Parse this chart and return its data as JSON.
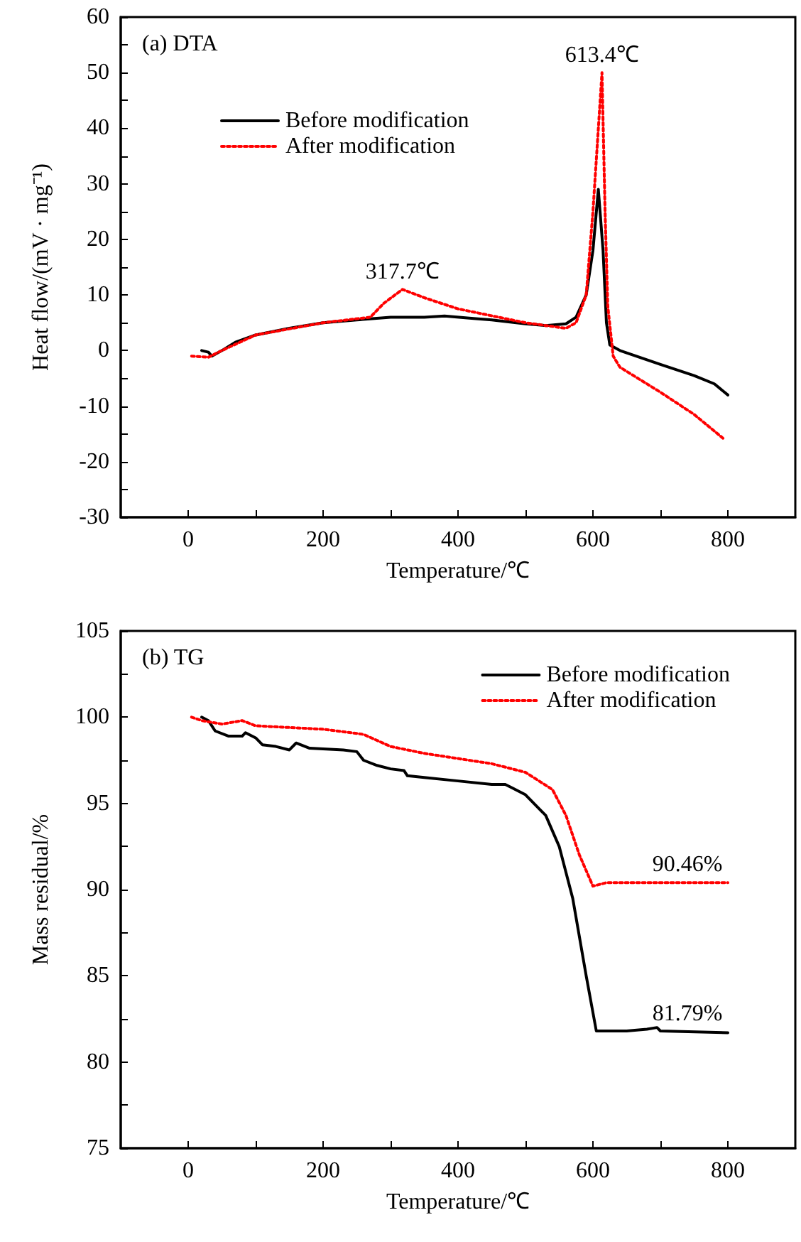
{
  "chart_data": [
    {
      "type": "line",
      "title": "(a) DTA",
      "xlabel": "Temperature/℃",
      "ylabel": "Heat flow/(mV · mg⁻¹)",
      "legend": "top left",
      "marker": "none",
      "grid": false,
      "xlim": [
        -100,
        900
      ],
      "xticks": [
        0,
        {
          "value": 100,
          "label": null
        },
        200,
        {
          "value": 300,
          "label": null
        },
        400,
        {
          "value": 500,
          "label": null
        },
        600,
        {
          "value": 700,
          "label": null
        },
        800
      ],
      "ylim": [
        -30,
        60
      ],
      "yticks": [
        -30,
        {
          "value": -25,
          "label": null
        },
        -20,
        {
          "value": -15,
          "label": null
        },
        -10,
        {
          "value": -5,
          "label": null
        },
        0,
        {
          "value": 5,
          "label": null
        },
        10,
        {
          "value": 15,
          "label": null
        },
        20,
        {
          "value": 25,
          "label": null
        },
        30,
        {
          "value": 35,
          "label": null
        },
        40,
        {
          "value": 45,
          "label": null
        },
        50,
        {
          "value": 55,
          "label": null
        },
        60
      ],
      "annotations": [
        {
          "text": "317.7℃",
          "x": 317.7,
          "y": 11
        },
        {
          "text": "613.4℃",
          "x": 613.4,
          "y": 50
        }
      ],
      "series": [
        {
          "name": "Before modification",
          "color": "#000000",
          "line_style": "solid",
          "x": [
            20,
            30,
            35,
            50,
            70,
            100,
            150,
            200,
            250,
            300,
            350,
            380,
            420,
            450,
            500,
            530,
            560,
            575,
            590,
            600,
            608,
            615,
            620,
            625,
            640,
            700,
            750,
            780,
            800
          ],
          "values": [
            0,
            -0.3,
            -1,
            0,
            1.5,
            2.8,
            4,
            5,
            5.5,
            6,
            6,
            6.2,
            5.8,
            5.5,
            4.8,
            4.5,
            4.8,
            6,
            10,
            18,
            29,
            18,
            5,
            1,
            0,
            -2.5,
            -4.5,
            -6,
            -8
          ]
        },
        {
          "name": "After modification",
          "color": "#ff0000",
          "line_style": "dotted",
          "x": [
            5,
            30,
            50,
            100,
            200,
            270,
            290,
            317.7,
            350,
            400,
            500,
            560,
            575,
            590,
            600,
            613.4,
            618,
            622,
            630,
            640,
            700,
            750,
            795
          ],
          "values": [
            -1,
            -1.2,
            0,
            2.8,
            5,
            6,
            8.5,
            11,
            9.5,
            7.5,
            5,
            4,
            5,
            10,
            25,
            50,
            25,
            8,
            -1,
            -3,
            -7.5,
            -11.5,
            -16
          ]
        }
      ]
    },
    {
      "type": "line",
      "title": "(b) TG",
      "xlabel": "Temperature/℃",
      "ylabel": "Mass residual/%",
      "legend": "top right",
      "marker": "none",
      "grid": false,
      "xlim": [
        -100,
        900
      ],
      "xticks": [
        0,
        {
          "value": 100,
          "label": null
        },
        200,
        {
          "value": 300,
          "label": null
        },
        400,
        {
          "value": 500,
          "label": null
        },
        600,
        {
          "value": 700,
          "label": null
        },
        800
      ],
      "ylim": [
        75,
        105
      ],
      "yticks": [
        75,
        {
          "value": 77.5,
          "label": null
        },
        80,
        {
          "value": 82.5,
          "label": null
        },
        85,
        {
          "value": 87.5,
          "label": null
        },
        90,
        {
          "value": 92.5,
          "label": null
        },
        95,
        {
          "value": 97.5,
          "label": null
        },
        100,
        {
          "value": 102.5,
          "label": null
        },
        105
      ],
      "annotations": [
        {
          "text": "90.46%",
          "x": 740,
          "y": 90.46
        },
        {
          "text": "81.79%",
          "x": 740,
          "y": 81.79
        }
      ],
      "series": [
        {
          "name": "Before modification",
          "color": "#000000",
          "line_style": "solid",
          "x": [
            20,
            30,
            40,
            60,
            80,
            85,
            100,
            110,
            130,
            150,
            160,
            180,
            230,
            250,
            260,
            280,
            300,
            320,
            325,
            350,
            400,
            450,
            470,
            480,
            500,
            530,
            550,
            570,
            590,
            605,
            650,
            680,
            695,
            700,
            800
          ],
          "values": [
            100,
            99.8,
            99.2,
            98.9,
            98.9,
            99.1,
            98.8,
            98.4,
            98.3,
            98.1,
            98.5,
            98.2,
            98.1,
            98,
            97.5,
            97.2,
            97,
            96.9,
            96.6,
            96.5,
            96.3,
            96.1,
            96.1,
            95.9,
            95.5,
            94.3,
            92.5,
            89.5,
            85,
            81.8,
            81.8,
            81.9,
            82,
            81.8,
            81.7
          ]
        },
        {
          "name": "After modification",
          "color": "#ff0000",
          "line_style": "dotted",
          "x": [
            5,
            20,
            50,
            80,
            100,
            200,
            260,
            300,
            350,
            450,
            500,
            540,
            560,
            580,
            600,
            620,
            800
          ],
          "values": [
            100,
            99.8,
            99.6,
            99.8,
            99.5,
            99.3,
            99,
            98.3,
            97.9,
            97.3,
            96.8,
            95.8,
            94.3,
            92,
            90.2,
            90.4,
            90.4
          ]
        }
      ]
    }
  ]
}
